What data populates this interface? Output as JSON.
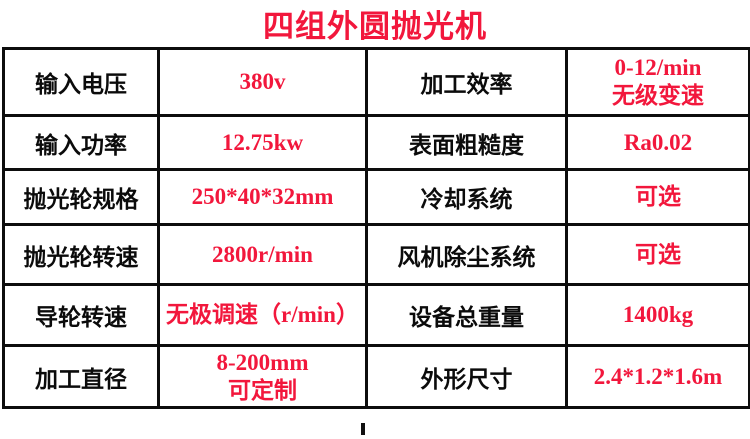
{
  "title": "四组外圆抛光机",
  "colors": {
    "accent_red": "#f2173c",
    "text_black": "#0b0b0b",
    "border_black": "#0d0d0d",
    "background": "#ffffff"
  },
  "table": {
    "rows": [
      {
        "label1": "输入电压",
        "value1": [
          "380v"
        ],
        "label2": "加工效率",
        "value2": [
          "0-12/min",
          "无级变速"
        ]
      },
      {
        "label1": "输入功率",
        "value1": [
          "12.75kw"
        ],
        "label2": "表面粗糙度",
        "value2": [
          "Ra0.02"
        ]
      },
      {
        "label1": "抛光轮规格",
        "value1": [
          "250*40*32mm"
        ],
        "label2": "冷却系统",
        "value2": [
          "可选"
        ]
      },
      {
        "label1": "抛光轮转速",
        "value1": [
          "2800r/min"
        ],
        "label2": "风机除尘系统",
        "value2": [
          "可选"
        ]
      },
      {
        "label1": "导轮转速",
        "value1": [
          "无极调速（r/min）"
        ],
        "label2": "设备总重量",
        "value2": [
          "1400kg"
        ]
      },
      {
        "label1": "加工直径",
        "value1": [
          "8-200mm",
          "可定制"
        ],
        "label2": "外形尺寸",
        "value2": [
          "2.4*1.2*1.6m"
        ]
      }
    ]
  }
}
